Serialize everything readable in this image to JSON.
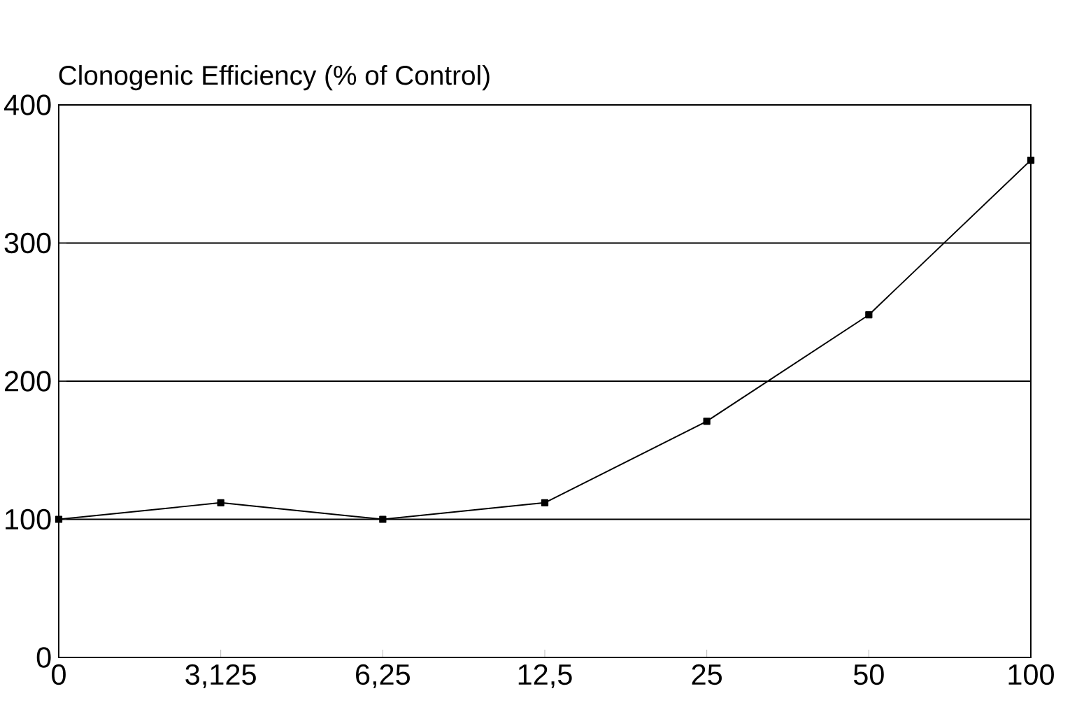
{
  "chart_data": {
    "type": "line",
    "ylabel": "Clonogenic Efficiency (% of Control)",
    "categories": [
      "0",
      "3,125",
      "6,25",
      "12,5",
      "25",
      "50",
      "100"
    ],
    "values": [
      100,
      112,
      100,
      112,
      171,
      248,
      360
    ],
    "color": "#000000",
    "marker": "square",
    "line_style": "solid",
    "ylim": [
      0,
      400
    ],
    "yticks": [
      0,
      100,
      200,
      300,
      400
    ],
    "grid": "y"
  }
}
